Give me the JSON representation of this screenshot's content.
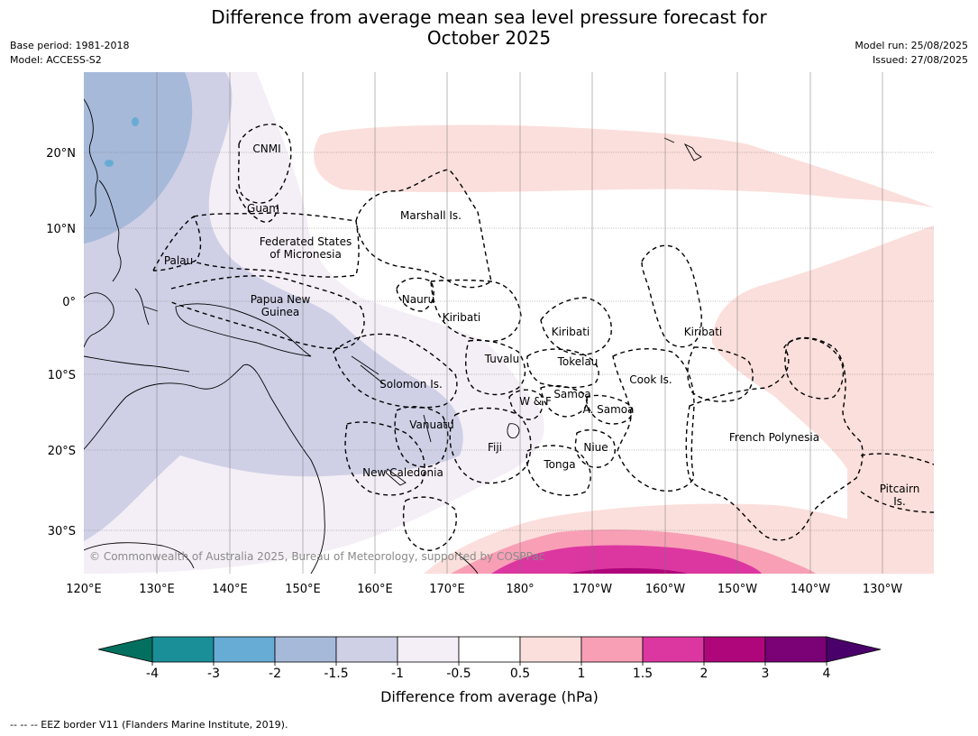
{
  "title_line1": "Difference from average mean sea level pressure forecast for",
  "title_line2": "October 2025",
  "base_period": "Base period: 1981-2018",
  "model": "Model: ACCESS-S2",
  "model_run": "Model run: 25/08/2025",
  "issued": "Issued: 27/08/2025",
  "copyright": "© Commonwealth of Australia 2025, Bureau of Meteorology, supported by COSPPac",
  "footnote": "-- -- -- EEZ border V11 (Flanders Marine Institute, 2019).",
  "colorbar_label": "Difference from average (hPa)",
  "lon_labels": [
    "120°E",
    "130°E",
    "140°E",
    "150°E",
    "160°E",
    "170°E",
    "180°",
    "170°W",
    "160°W",
    "150°W",
    "140°W",
    "130°W"
  ],
  "lat_labels": [
    "20°N",
    "10°N",
    "0°",
    "10°S",
    "20°S",
    "30°S"
  ],
  "colorbar": {
    "ticks": [
      "-4",
      "-3",
      "-2",
      "-1.5",
      "-1",
      "-0.5",
      "0.5",
      "1",
      "1.5",
      "2",
      "3",
      "4"
    ],
    "colors": [
      "#1a8f97",
      "#67acd5",
      "#a6b9d9",
      "#cfd0e6",
      "#f4eef6",
      "#ffffff",
      "#fbdfdc",
      "#f89fb6",
      "#dc37a0",
      "#b0067c",
      "#7b0177"
    ],
    "under_color": "#03705f",
    "over_color": "#4a006a"
  },
  "places": [
    {
      "name": "CNMI",
      "lines": [
        "CNMI"
      ]
    },
    {
      "name": "Guam",
      "lines": [
        "Guam"
      ]
    },
    {
      "name": "Marshall Is.",
      "lines": [
        "Marshall Is."
      ]
    },
    {
      "name": "Palau",
      "lines": [
        "Palau"
      ]
    },
    {
      "name": "Federated States of Micronesia",
      "lines": [
        "Federated States",
        "of Micronesia"
      ]
    },
    {
      "name": "Papua New Guinea",
      "lines": [
        "Papua New",
        "Guinea"
      ]
    },
    {
      "name": "Nauru",
      "lines": [
        "Nauru"
      ]
    },
    {
      "name": "Kiribati west",
      "lines": [
        "Kiribati"
      ]
    },
    {
      "name": "Kiribati central",
      "lines": [
        "Kiribati"
      ]
    },
    {
      "name": "Kiribati east",
      "lines": [
        "Kiribati"
      ]
    },
    {
      "name": "Tuvalu",
      "lines": [
        "Tuvalu"
      ]
    },
    {
      "name": "Tokelau",
      "lines": [
        "Tokelau"
      ]
    },
    {
      "name": "Solomon Is.",
      "lines": [
        "Solomon Is."
      ]
    },
    {
      "name": "Cook Is.",
      "lines": [
        "Cook Is."
      ]
    },
    {
      "name": "W & F",
      "lines": [
        "W & F"
      ]
    },
    {
      "name": "Samoa",
      "lines": [
        "Samoa"
      ]
    },
    {
      "name": "A. Samoa",
      "lines": [
        "A. Samoa"
      ]
    },
    {
      "name": "Vanuatu",
      "lines": [
        "Vanuatu"
      ]
    },
    {
      "name": "Fiji",
      "lines": [
        "Fiji"
      ]
    },
    {
      "name": "Niue",
      "lines": [
        "Niue"
      ]
    },
    {
      "name": "French Polynesia",
      "lines": [
        "French Polynesia"
      ]
    },
    {
      "name": "Tonga",
      "lines": [
        "Tonga"
      ]
    },
    {
      "name": "New Caledonia",
      "lines": [
        "New Caledonia"
      ]
    },
    {
      "name": "Pitcairn Is.",
      "lines": [
        "Pitcairn",
        "Is."
      ]
    }
  ]
}
